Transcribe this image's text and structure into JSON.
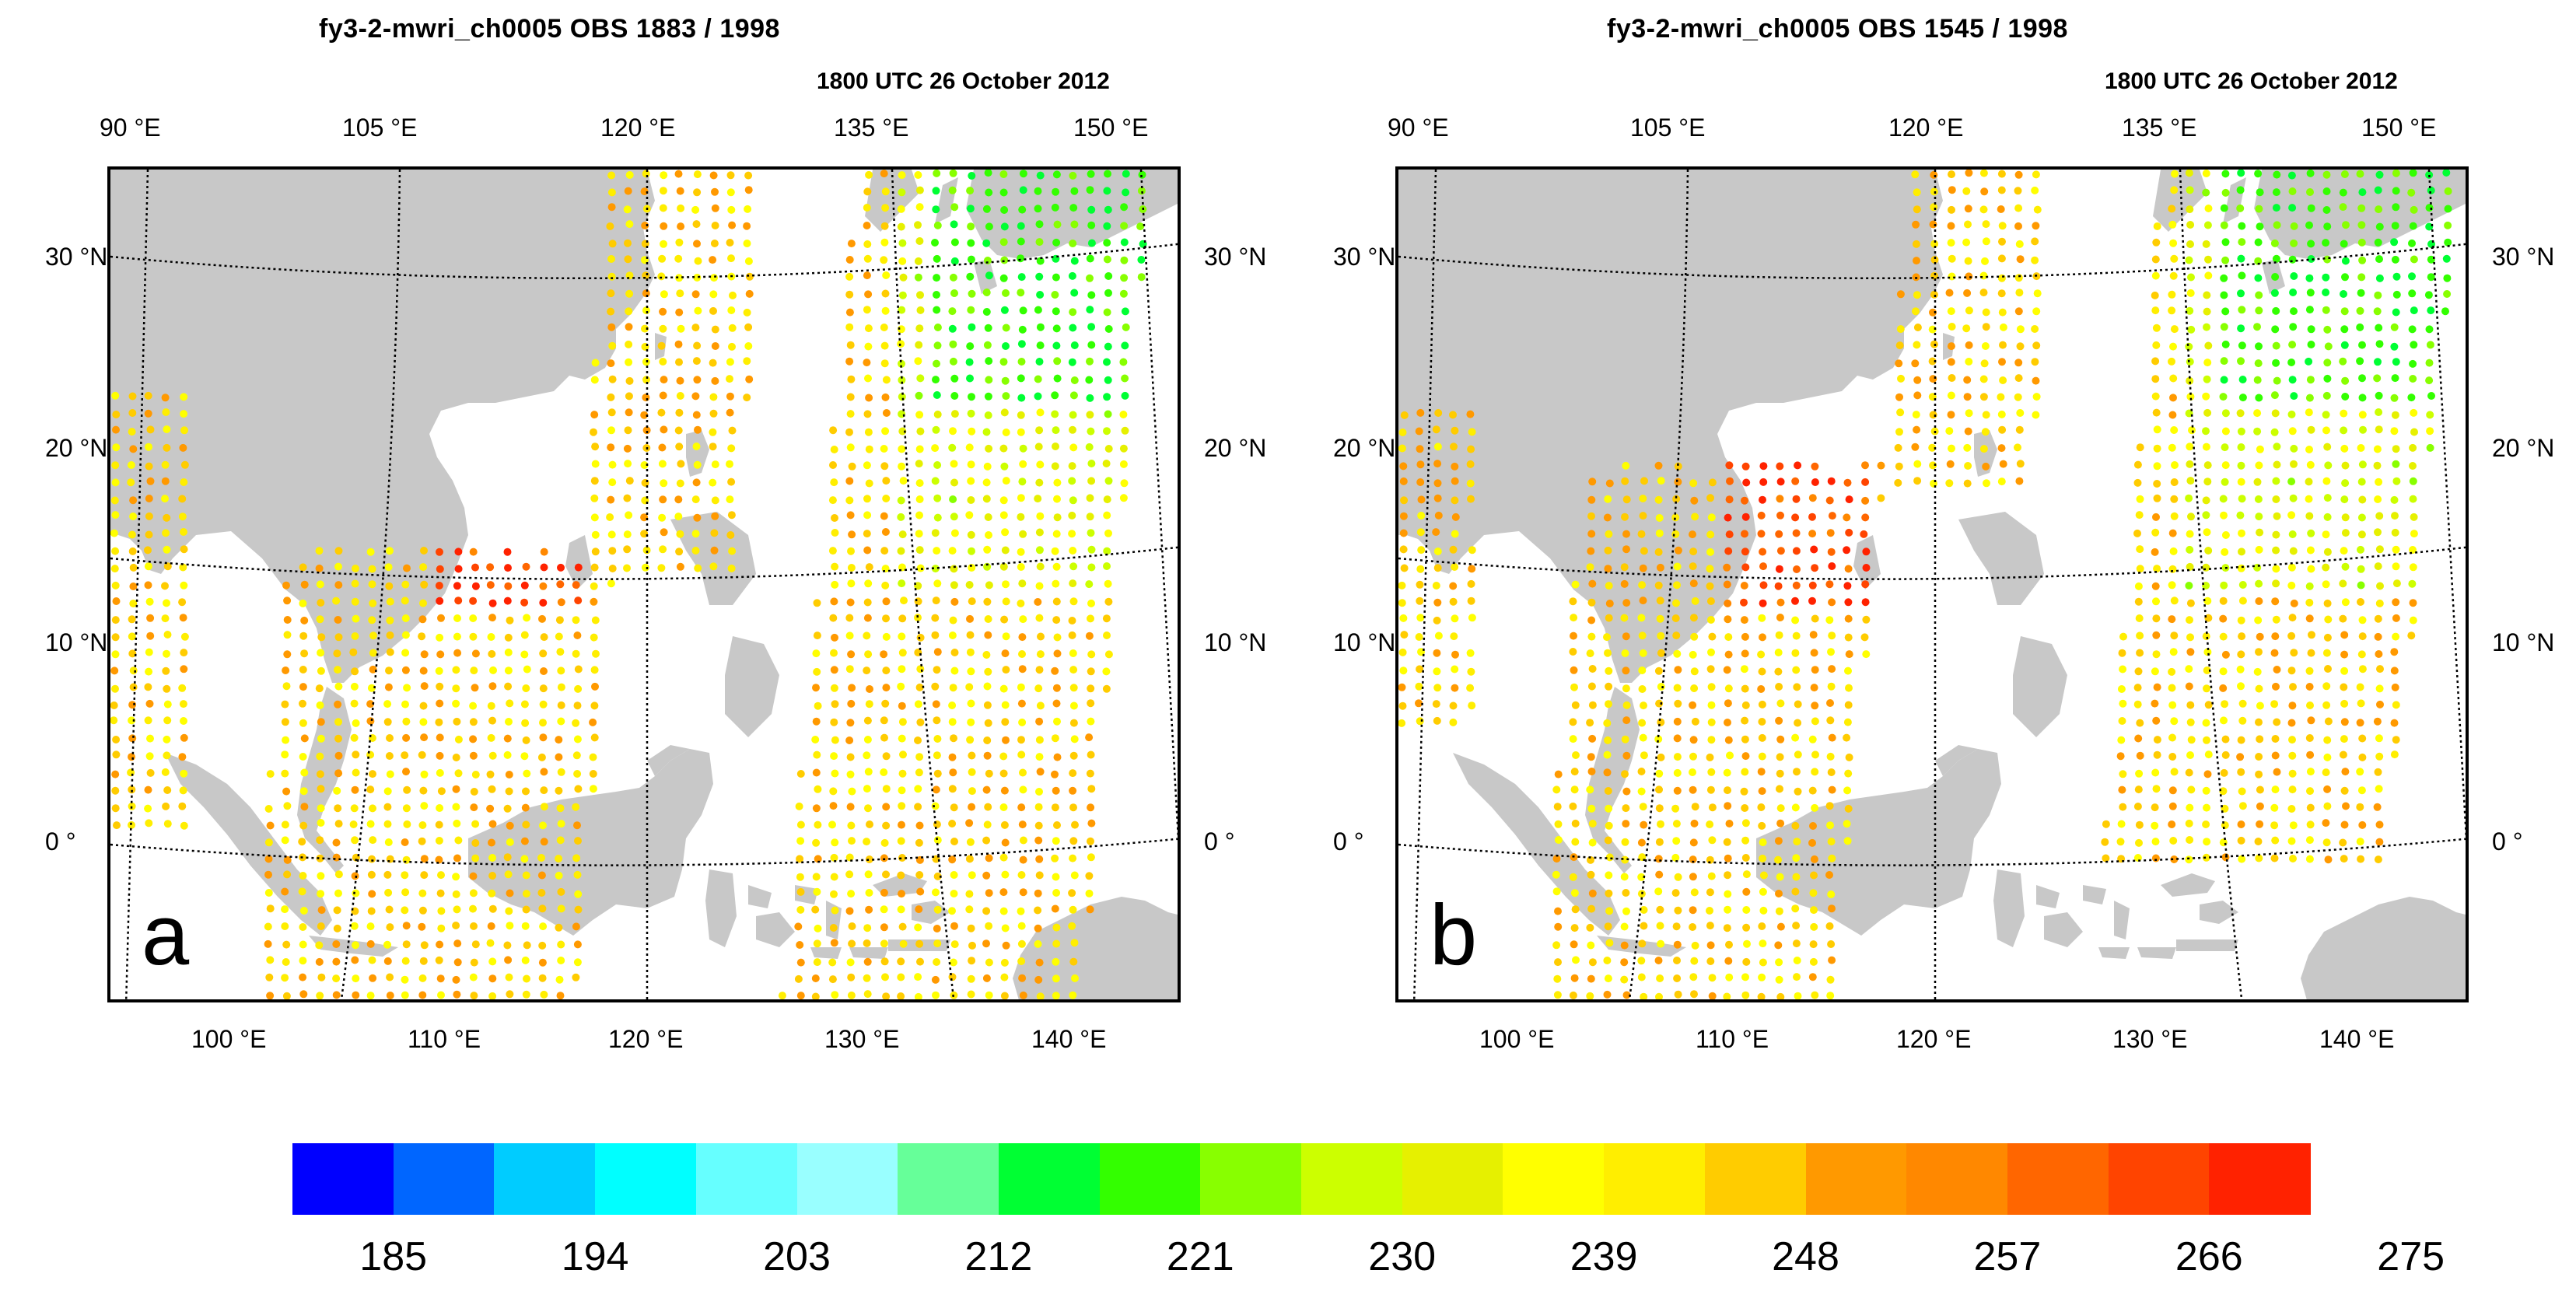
{
  "panels": [
    {
      "id": "a",
      "title": "fy3-2-mwri_ch0005  OBS  1883 / 1998",
      "letter": "a"
    },
    {
      "id": "b",
      "title": "fy3-2-mwri_ch0005  OBS  1545 / 1998",
      "letter": "b"
    }
  ],
  "subtitle": "1800 UTC 26 October 2012",
  "axes": {
    "top_ticks": [
      "90 °E",
      "105 °E",
      "120 °E",
      "135 °E",
      "150 °E"
    ],
    "bottom_ticks": [
      "100 °E",
      "110 °E",
      "120 °E",
      "130 °E",
      "140 °E"
    ],
    "left_ticks": [
      "30 °N",
      "20 °N",
      "10 °N",
      "0 °"
    ],
    "right_ticks": [
      "30 °N",
      "20 °N",
      "10 °N",
      "0 °"
    ]
  },
  "colorbar": {
    "colors": [
      "#0000ff",
      "#0066ff",
      "#00ccff",
      "#00ffff",
      "#66ffff",
      "#99ffff",
      "#66ff99",
      "#00ff33",
      "#33ff00",
      "#88ff00",
      "#ccff00",
      "#e6f000",
      "#ffff00",
      "#ffee00",
      "#ffcc00",
      "#ff9900",
      "#ff8800",
      "#ff6600",
      "#ff4400",
      "#ff2200"
    ],
    "labels": [
      "185",
      "194",
      "203",
      "212",
      "221",
      "230",
      "239",
      "248",
      "257",
      "266",
      "275"
    ]
  },
  "map_style": {
    "land": "#c8c8c8",
    "grid": "#000000"
  }
}
